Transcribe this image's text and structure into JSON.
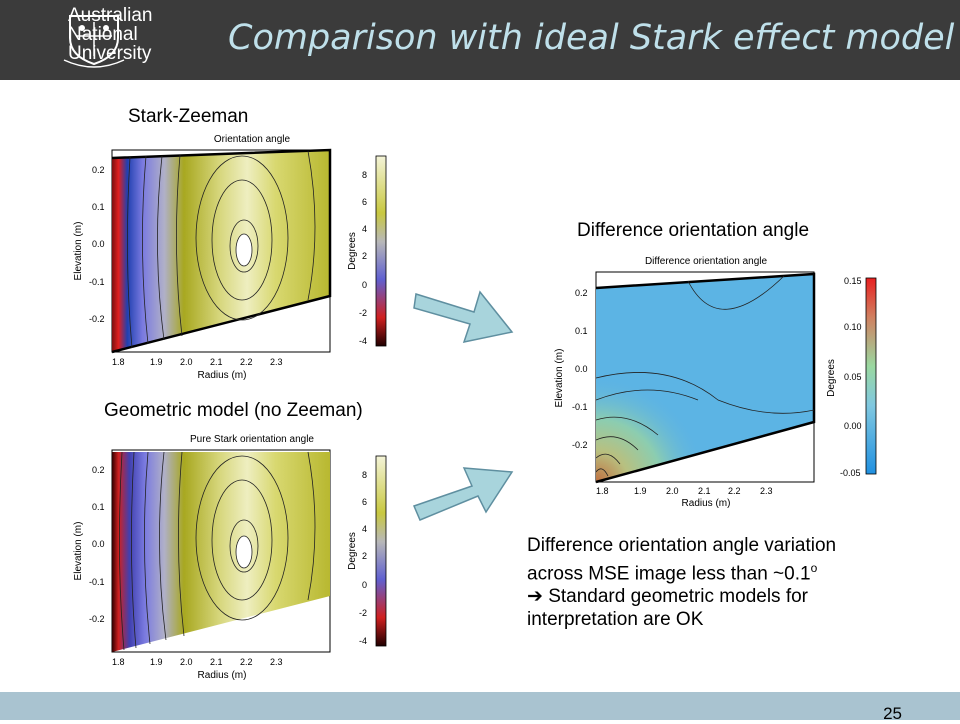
{
  "header": {
    "logo_lines": [
      "Australian",
      "National",
      "University"
    ],
    "title": "Comparison with ideal Stark effect model"
  },
  "plots": {
    "stark_zeeman": {
      "caption": "Stark-Zeeman",
      "title": "Orientation angle",
      "xlabel": "Radius (m)",
      "ylabel": "Elevation (m)",
      "cbar_label": "Degrees",
      "xticks": [
        "1.8",
        "1.9",
        "2.0",
        "2.1",
        "2.2",
        "2.3"
      ],
      "yticks": [
        "0.2",
        "0.1",
        "0.0",
        "-0.1",
        "-0.2"
      ],
      "cbar_ticks": [
        "8",
        "6",
        "4",
        "2",
        "0",
        "-2",
        "-4"
      ]
    },
    "geometric": {
      "caption": "Geometric model (no Zeeman)",
      "title": "Pure Stark orientation angle",
      "xlabel": "Radius (m)",
      "ylabel": "Elevation (m)",
      "cbar_label": "Degrees",
      "xticks": [
        "1.8",
        "1.9",
        "2.0",
        "2.1",
        "2.2",
        "2.3"
      ],
      "yticks": [
        "0.2",
        "0.1",
        "0.0",
        "-0.1",
        "-0.2"
      ],
      "cbar_ticks": [
        "8",
        "6",
        "4",
        "2",
        "0",
        "-2",
        "-4"
      ]
    },
    "difference": {
      "caption": "Difference orientation angle",
      "title": "Difference orientation angle",
      "xlabel": "Radius (m)",
      "ylabel": "Elevation (m)",
      "cbar_label": "Degrees",
      "xticks": [
        "1.8",
        "1.9",
        "2.0",
        "2.1",
        "2.2",
        "2.3"
      ],
      "yticks": [
        "0.2",
        "0.1",
        "0.0",
        "-0.1",
        "-0.2"
      ],
      "cbar_ticks": [
        "0.15",
        "0.10",
        "0.05",
        "0.00",
        "-0.05"
      ]
    }
  },
  "note": {
    "line1": "Difference orientation angle variation across MSE image less than ~0.1",
    "superscript": "o",
    "arrow_symbol": "➔",
    "line2": "Standard geometric models for interpretation are OK"
  },
  "footer": {
    "page_number": "25"
  },
  "colors": {
    "header_bg": "#3b3b3b",
    "title": "#bfe0ea",
    "footer_bg": "#a9c3d0",
    "arrow_fill": "#a8d4dc"
  }
}
